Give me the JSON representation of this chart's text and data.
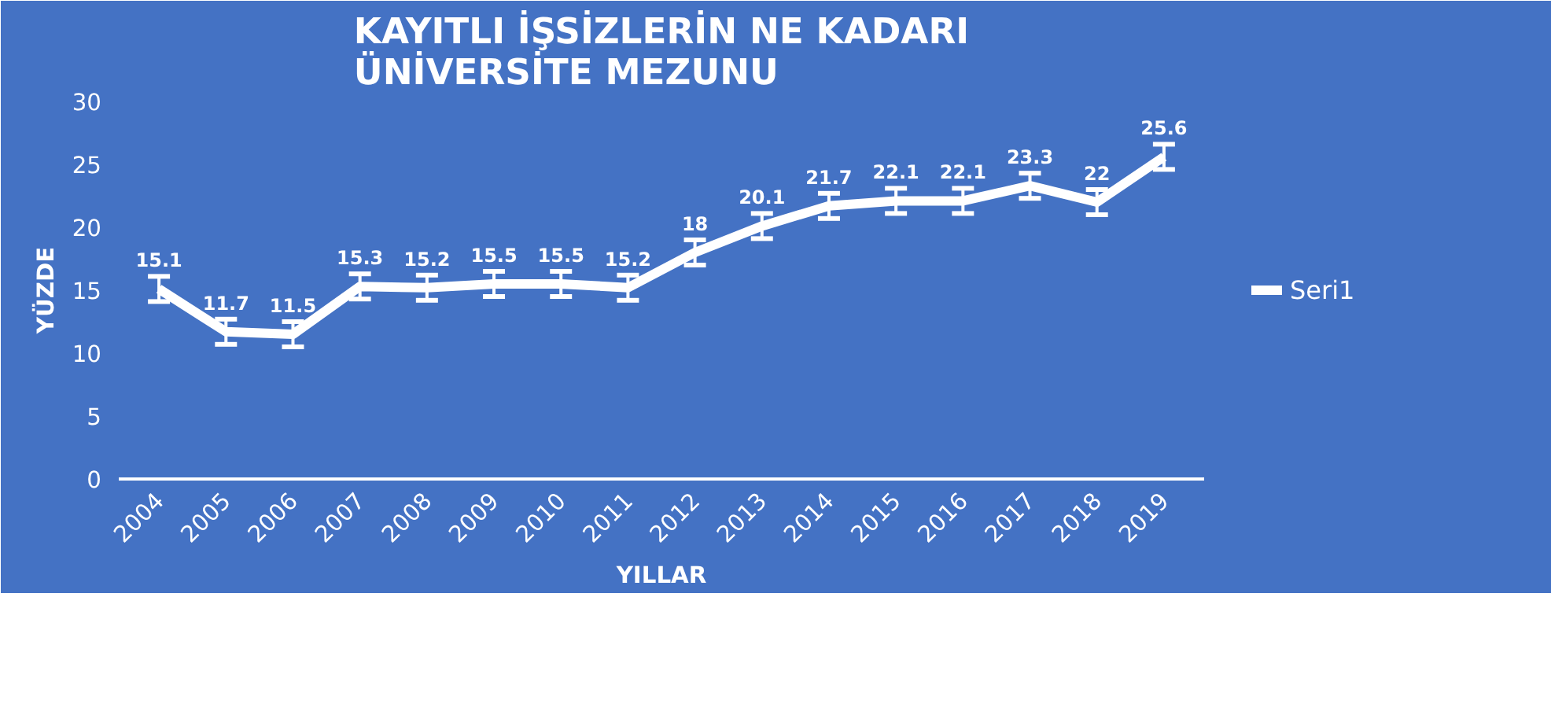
{
  "chart_data": {
    "type": "line",
    "title": "KAYITLI İŞSİZLERİN NE KADARI\nÜNİVERSİTE MEZUNU",
    "xlabel": "YILLAR",
    "ylabel": "YÜZDE",
    "categories": [
      "2004",
      "2005",
      "2006",
      "2007",
      "2008",
      "2009",
      "2010",
      "2011",
      "2012",
      "2013",
      "2014",
      "2015",
      "2016",
      "2017",
      "2018",
      "2019"
    ],
    "series": [
      {
        "name": "Seri1",
        "color": "#ffffff",
        "values": [
          15.1,
          11.7,
          11.5,
          15.3,
          15.2,
          15.5,
          15.5,
          15.2,
          18,
          20.1,
          21.7,
          22.1,
          22.1,
          23.3,
          22,
          25.6
        ],
        "errors": [
          1,
          1,
          1,
          1,
          1,
          1,
          1,
          1,
          1,
          1,
          1,
          1,
          1,
          1,
          1,
          1
        ]
      }
    ],
    "ylim": [
      0,
      30
    ],
    "yticks": [
      0,
      5,
      10,
      15,
      20,
      25,
      30
    ],
    "grid": false,
    "legend": "right",
    "data_labels": true,
    "marker": "none",
    "line_style": "solid"
  }
}
